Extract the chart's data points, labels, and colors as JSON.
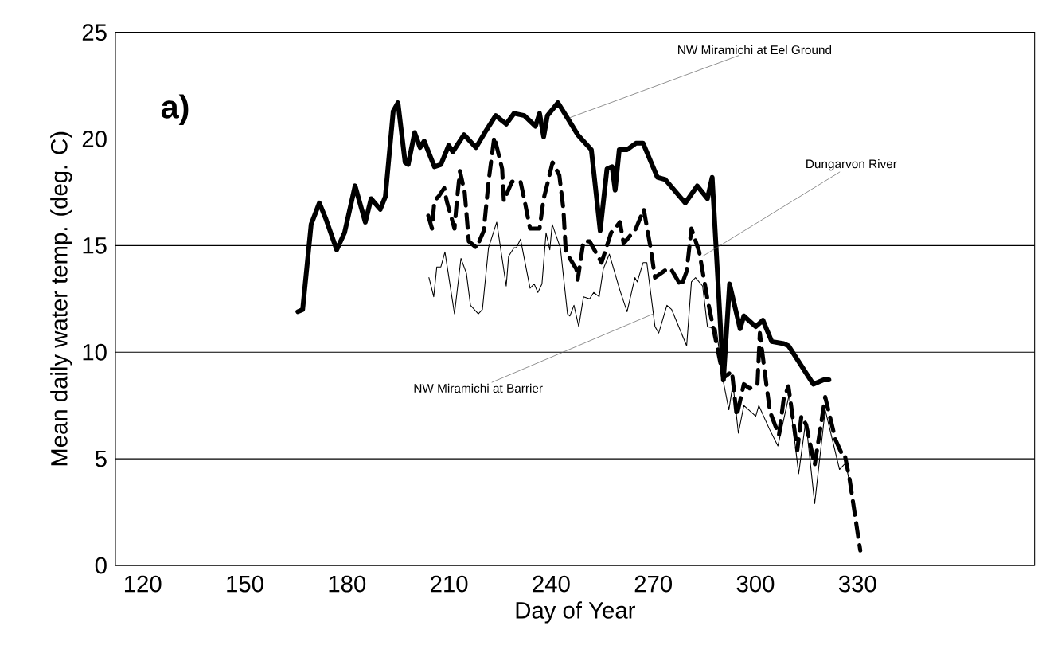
{
  "chart_data": {
    "type": "line",
    "xlabel": "Day of Year",
    "ylabel": "Mean daily water temp. (deg. C)",
    "xlim": [
      112,
      382
    ],
    "ylim": [
      0,
      25
    ],
    "xticks": [
      120,
      150,
      180,
      210,
      240,
      270,
      300,
      330
    ],
    "yticks": [
      0,
      5,
      10,
      15,
      20,
      25
    ],
    "grid": "y",
    "annotations": [
      "a)",
      {
        "text": "NW Miramichi at Eel Ground",
        "x": 245.5,
        "y": 21.0
      },
      {
        "text": "Dungarvon River",
        "x": 284.5,
        "y": 14.5
      },
      {
        "text": "NW Miramichi at Barrier",
        "x": 270.0,
        "y": 11.8
      }
    ],
    "series": [
      {
        "color": "#000000",
        "line_style": "solid",
        "x": [
          165.6,
          167.0,
          169.5,
          171.9,
          173.7,
          177.0,
          179.3,
          182.4,
          185.4,
          187.1,
          189.8,
          191.3,
          193.6,
          195.0,
          197.1,
          198.0,
          199.9,
          201.5,
          202.7,
          205.7,
          207.6,
          209.9,
          211.1,
          214.4,
          217.9,
          220.9,
          223.7,
          226.8,
          229.1,
          232.1,
          235.4,
          236.6,
          237.8,
          238.9,
          242.0,
          245.5,
          247.8,
          249.5,
          251.8,
          254.4,
          256.4,
          257.9,
          258.8,
          260.0,
          262.3,
          264.9,
          267.0,
          271.2,
          273.5,
          279.4,
          282.9,
          285.9,
          287.3,
          290.6,
          292.4,
          295.5,
          296.6,
          300.1,
          302.2,
          304.8,
          308.3,
          309.7,
          317.0,
          320.0,
          321.6
        ],
        "values": [
          11.9,
          12.0,
          16.0,
          17.0,
          16.3,
          14.8,
          15.6,
          17.8,
          16.1,
          17.2,
          16.7,
          17.3,
          21.3,
          21.7,
          18.9,
          18.8,
          20.3,
          19.6,
          19.9,
          18.7,
          18.8,
          19.7,
          19.4,
          20.2,
          19.6,
          20.4,
          21.1,
          20.7,
          21.2,
          21.1,
          20.6,
          21.2,
          20.1,
          21.1,
          21.7,
          20.8,
          20.2,
          19.9,
          19.5,
          15.7,
          18.6,
          18.7,
          17.6,
          19.5,
          19.5,
          19.8,
          19.8,
          18.2,
          18.1,
          17.0,
          17.8,
          17.2,
          18.2,
          8.7,
          13.2,
          11.1,
          11.7,
          11.2,
          11.5,
          10.5,
          10.4,
          10.3,
          8.5,
          8.7,
          8.7
        ]
      },
      {
        "color": "#000000",
        "line_style": "dashed",
        "x": [
          203.9,
          205.0,
          205.7,
          206.9,
          208.6,
          209.3,
          211.6,
          212.3,
          213.2,
          214.6,
          215.8,
          218.1,
          220.2,
          221.6,
          223.3,
          225.6,
          226.1,
          228.5,
          231.0,
          232.2,
          233.8,
          236.6,
          237.8,
          238.9,
          240.4,
          242.4,
          243.6,
          244.3,
          247.4,
          247.8,
          249.5,
          251.3,
          254.8,
          256.4,
          257.6,
          260.2,
          261.3,
          264.9,
          267.2,
          269.3,
          270.5,
          274.0,
          275.2,
          278.2,
          279.8,
          281.2,
          283.5,
          285.9,
          290.6,
          293.1,
          294.5,
          296.6,
          298.3,
          300.6,
          301.3,
          303.2,
          304.3,
          306.2,
          306.9,
          308.3,
          309.7,
          312.3,
          313.5,
          314.9,
          317.4,
          320.5,
          323.5,
          325.2,
          326.1,
          327.7,
          330.8
        ],
        "values": [
          16.4,
          15.8,
          17.1,
          17.3,
          17.7,
          17.1,
          15.8,
          17.1,
          18.5,
          17.5,
          15.2,
          14.9,
          15.7,
          18.0,
          20.1,
          18.6,
          17.1,
          18.0,
          18.0,
          17.1,
          15.8,
          15.8,
          17.2,
          17.9,
          18.9,
          18.3,
          16.7,
          14.7,
          13.9,
          13.4,
          15.2,
          15.2,
          14.2,
          15.0,
          15.6,
          16.1,
          15.1,
          15.8,
          16.7,
          14.8,
          13.5,
          13.9,
          13.9,
          13.1,
          13.8,
          15.8,
          14.7,
          12.5,
          8.8,
          9.1,
          7.0,
          8.5,
          8.3,
          8.5,
          10.9,
          8.5,
          7.2,
          6.4,
          6.1,
          7.8,
          8.4,
          5.4,
          7.0,
          6.6,
          4.7,
          7.9,
          5.9,
          5.3,
          5.3,
          4.0,
          0.7
        ]
      },
      {
        "color": "#000000",
        "line_style": "solid",
        "x": [
          204.1,
          205.5,
          206.4,
          207.6,
          208.8,
          211.6,
          213.5,
          215.1,
          216.3,
          218.6,
          219.8,
          221.6,
          224.0,
          226.8,
          227.5,
          229.1,
          229.8,
          231.0,
          233.8,
          235.0,
          236.1,
          237.3,
          238.5,
          239.6,
          240.3,
          242.7,
          244.8,
          245.5,
          246.7,
          248.1,
          249.5,
          251.3,
          252.5,
          254.1,
          255.3,
          257.1,
          260.2,
          262.3,
          264.6,
          265.3,
          267.0,
          268.1,
          270.5,
          271.6,
          274.0,
          275.4,
          279.8,
          281.2,
          282.4,
          284.5,
          285.9,
          288.5,
          290.6,
          292.2,
          293.4,
          295.0,
          296.6,
          300.1,
          301.0,
          304.1,
          306.6,
          309.9,
          312.7,
          314.8,
          317.4,
          320.5,
          324.7,
          326.5,
          327.5
        ],
        "values": [
          13.5,
          12.6,
          14.0,
          14.0,
          14.7,
          11.8,
          14.4,
          13.7,
          12.2,
          11.8,
          12.0,
          14.9,
          16.1,
          13.1,
          14.5,
          14.9,
          14.9,
          15.3,
          13.0,
          13.2,
          12.8,
          13.2,
          15.6,
          14.8,
          16.0,
          14.9,
          11.8,
          11.7,
          12.2,
          11.2,
          12.6,
          12.5,
          12.8,
          12.6,
          13.9,
          14.6,
          12.9,
          11.9,
          13.5,
          13.3,
          14.2,
          14.2,
          11.2,
          10.9,
          12.2,
          12.0,
          10.3,
          13.3,
          13.5,
          13.1,
          11.2,
          11.1,
          8.6,
          7.3,
          8.5,
          6.2,
          7.5,
          7.0,
          7.5,
          6.4,
          5.6,
          8.0,
          4.3,
          6.8,
          2.9,
          7.3,
          4.5,
          4.8,
          4.0
        ]
      }
    ]
  }
}
